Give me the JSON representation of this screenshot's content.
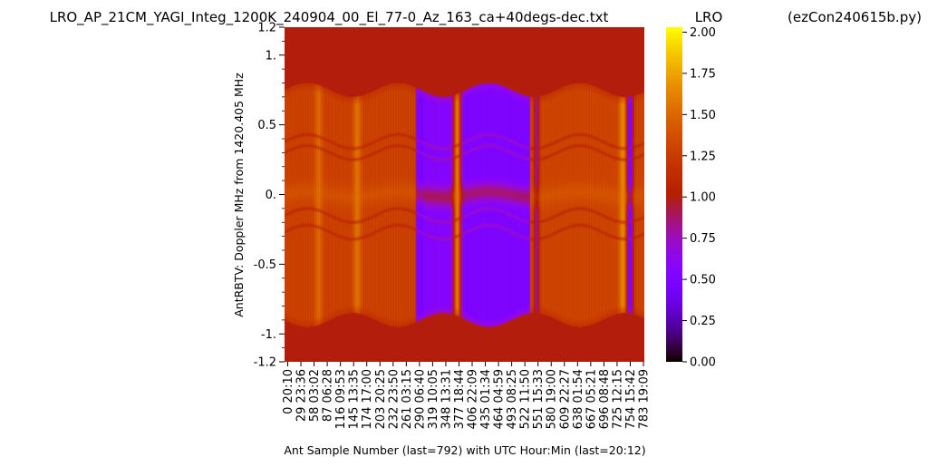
{
  "chart_data": {
    "type": "heatmap",
    "title": "LRO_AP_21CM_YAGI_Integ_1200K_240904_00_El_77-0_Az_163_ca+40degs-dec.txt",
    "title_right_1": "LRO",
    "title_right_2": "(ezCon240615b.py)",
    "xlabel": "Ant Sample Number (last=792) with UTC Hour:Min (last=20:12)",
    "ylabel": "AntRBTV:  Doppler MHz from 1420.405 MHz",
    "x_range": [
      0,
      792
    ],
    "ylim": [
      -1.2,
      1.2
    ],
    "y_ticks": [
      {
        "value": 1.2,
        "label": "1.2"
      },
      {
        "value": 1.0,
        "label": "1."
      },
      {
        "value": 0.5,
        "label": "0.5"
      },
      {
        "value": 0.0,
        "label": "0."
      },
      {
        "value": -0.5,
        "label": "-0.5"
      },
      {
        "value": -1.0,
        "label": "-1."
      },
      {
        "value": -1.2,
        "label": "-1.2"
      }
    ],
    "x_ticks": [
      {
        "sample": 0,
        "label": "0  20:10"
      },
      {
        "sample": 29,
        "label": "29  23:36"
      },
      {
        "sample": 58,
        "label": "58  03:02"
      },
      {
        "sample": 87,
        "label": "87  06:28"
      },
      {
        "sample": 116,
        "label": "116  09:53"
      },
      {
        "sample": 145,
        "label": "145  13:35"
      },
      {
        "sample": 174,
        "label": "174  17:00"
      },
      {
        "sample": 203,
        "label": "203  20:25"
      },
      {
        "sample": 232,
        "label": "232  23:50"
      },
      {
        "sample": 261,
        "label": "261  03:15"
      },
      {
        "sample": 290,
        "label": "290  06:40"
      },
      {
        "sample": 319,
        "label": "319  10:05"
      },
      {
        "sample": 348,
        "label": "348  13:31"
      },
      {
        "sample": 377,
        "label": "377  18:44"
      },
      {
        "sample": 406,
        "label": "406  22:09"
      },
      {
        "sample": 435,
        "label": "435  01:34"
      },
      {
        "sample": 464,
        "label": "464  04:59"
      },
      {
        "sample": 493,
        "label": "493  08:25"
      },
      {
        "sample": 522,
        "label": "522  11:50"
      },
      {
        "sample": 551,
        "label": "551  15:33"
      },
      {
        "sample": 580,
        "label": "580  19:00"
      },
      {
        "sample": 609,
        "label": "609  22:27"
      },
      {
        "sample": 638,
        "label": "638  01:54"
      },
      {
        "sample": 667,
        "label": "667  05:21"
      },
      {
        "sample": 696,
        "label": "696  08:48"
      },
      {
        "sample": 725,
        "label": "725  12:15"
      },
      {
        "sample": 754,
        "label": "754  15:42"
      },
      {
        "sample": 783,
        "label": "783  19:09"
      }
    ],
    "colorbar": {
      "colormap": "gnuplot",
      "range": [
        0.0,
        2.03
      ],
      "ticks": [
        {
          "value": 0.0,
          "label": "0.00"
        },
        {
          "value": 0.25,
          "label": "0.25"
        },
        {
          "value": 0.5,
          "label": "0.50"
        },
        {
          "value": 0.75,
          "label": "0.75"
        },
        {
          "value": 1.0,
          "label": "1.00"
        },
        {
          "value": 1.25,
          "label": "1.25"
        },
        {
          "value": 1.5,
          "label": "1.50"
        },
        {
          "value": 1.75,
          "label": "1.75"
        },
        {
          "value": 2.0,
          "label": "2.00"
        }
      ]
    },
    "background_value": 1.0,
    "band_edges": {
      "top_center_mhz": 0.75,
      "bottom_center_mhz": -0.9,
      "wave_amplitude_mhz": 0.05,
      "wave_period_samples": 200
    },
    "regions": [
      {
        "from_sample": 0,
        "to_sample": 290,
        "value": 1.28
      },
      {
        "from_sample": 290,
        "to_sample": 380,
        "value": 0.55
      },
      {
        "from_sample": 380,
        "to_sample": 540,
        "value": 0.5
      },
      {
        "from_sample": 540,
        "to_sample": 792,
        "value": 1.3
      }
    ],
    "hot_columns": [
      {
        "sample": 75,
        "value": 1.5
      },
      {
        "sample": 160,
        "value": 1.55
      },
      {
        "sample": 380,
        "value": 1.6
      },
      {
        "sample": 555,
        "value": 1.7
      },
      {
        "sample": 745,
        "value": 1.65
      }
    ],
    "cold_columns": [
      {
        "sample": 300,
        "value": 0.45
      },
      {
        "sample": 555,
        "value": 0.4
      },
      {
        "sample": 760,
        "value": 0.45
      }
    ],
    "hot_spot_mhz": 0.0,
    "hot_spot_value": 1.55,
    "ridge_lines_mhz": [
      0.38,
      0.3,
      -0.15,
      -0.27
    ],
    "ridge_value": 0.95
  }
}
